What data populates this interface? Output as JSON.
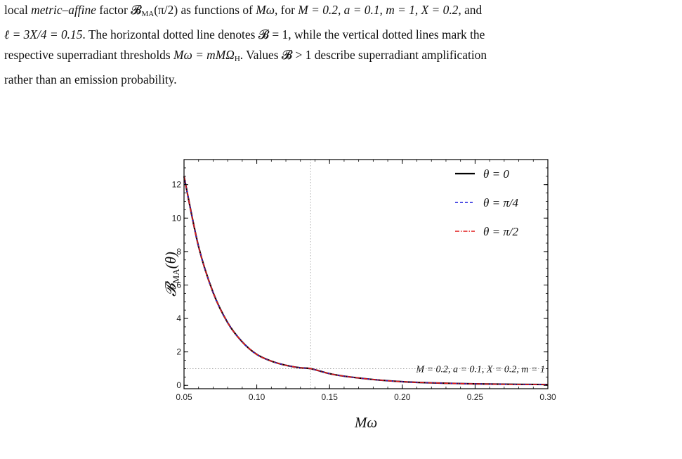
{
  "caption": {
    "line1_a": "local ",
    "line1_b": "metric–affine",
    "line1_c": " factor 𝓑",
    "line1_sub": "MA",
    "line1_d": "(π/2) as functions of ",
    "line1_e": "Mω",
    "line1_f": ", for ",
    "line1_g": "M = 0.2, a = 0.1, m = 1, X = 0.2,",
    "line1_h": " and",
    "line2_a": "ℓ = 3X/4 = 0.15",
    "line2_b": ". The horizontal dotted line denotes 𝓑 = 1, while the vertical dotted lines mark the",
    "line3_a": "respective superradiant thresholds ",
    "line3_b": "Mω = mMΩ",
    "line3_sub": "H",
    "line3_c": ". Values 𝓑 > 1 describe superradiant amplification",
    "line4": "rather than an emission probability."
  },
  "chart_data": {
    "type": "line",
    "xlabel": "Mω",
    "ylabel": "𝓑MA(θ)",
    "ylabel_main": "𝓑",
    "ylabel_sub": "MA",
    "ylabel_arg": "(θ)",
    "xlim": [
      0.05,
      0.3
    ],
    "ylim": [
      -0.2,
      13.5
    ],
    "xticks": [
      0.05,
      0.1,
      0.15,
      0.2,
      0.25,
      0.3
    ],
    "xtick_labels": [
      "0.05",
      "0.10",
      "0.15",
      "0.20",
      "0.25",
      "0.30"
    ],
    "yticks": [
      0,
      2,
      4,
      6,
      8,
      10,
      12
    ],
    "ytick_labels": [
      "0",
      "2",
      "4",
      "6",
      "8",
      "10",
      "12"
    ],
    "hline": 1,
    "vline": 0.137,
    "annotation": "M = 0.2,  a = 0.1,  X = 0.2,  m = 1",
    "legend_position": "top-right",
    "x": [
      0.05,
      0.06,
      0.07,
      0.08,
      0.09,
      0.1,
      0.11,
      0.12,
      0.13,
      0.137,
      0.15,
      0.16,
      0.18,
      0.2,
      0.22,
      0.25,
      0.28,
      0.3
    ],
    "series": [
      {
        "name": "θ = 0",
        "color": "#000000",
        "dash": "solid",
        "values": [
          12.5,
          8.3,
          5.55,
          3.75,
          2.6,
          1.85,
          1.45,
          1.2,
          1.05,
          1.0,
          0.7,
          0.55,
          0.35,
          0.22,
          0.15,
          0.09,
          0.06,
          0.05
        ]
      },
      {
        "name": "θ = π/4",
        "color": "#1a1adb",
        "dash": "dashed",
        "values": [
          12.5,
          8.3,
          5.55,
          3.75,
          2.6,
          1.85,
          1.45,
          1.2,
          1.05,
          1.0,
          0.7,
          0.55,
          0.35,
          0.22,
          0.15,
          0.09,
          0.06,
          0.05
        ]
      },
      {
        "name": "θ = π/2",
        "color": "#e01a1a",
        "dash": "dashdot",
        "values": [
          12.5,
          8.3,
          5.55,
          3.75,
          2.6,
          1.85,
          1.45,
          1.2,
          1.05,
          1.0,
          0.7,
          0.55,
          0.35,
          0.22,
          0.15,
          0.09,
          0.06,
          0.05
        ]
      }
    ]
  }
}
